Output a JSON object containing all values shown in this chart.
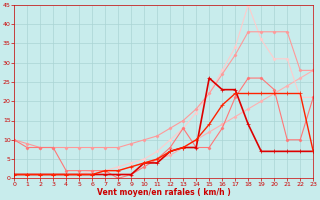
{
  "title": "",
  "xlabel": "Vent moyen/en rafales ( km/h )",
  "ylabel": "",
  "xlim": [
    0,
    23
  ],
  "ylim": [
    0,
    45
  ],
  "yticks": [
    0,
    5,
    10,
    15,
    20,
    25,
    30,
    35,
    40,
    45
  ],
  "xticks": [
    0,
    1,
    2,
    3,
    4,
    5,
    6,
    7,
    8,
    9,
    10,
    11,
    12,
    13,
    14,
    15,
    16,
    17,
    18,
    19,
    20,
    21,
    22,
    23
  ],
  "background_color": "#c8ecec",
  "grid_color": "#aad4d4",
  "series": [
    {
      "x": [
        0,
        1,
        2,
        3,
        4,
        5,
        6,
        7,
        8,
        9,
        10,
        11,
        12,
        13,
        14,
        15,
        16,
        17,
        18,
        19,
        20,
        21,
        22,
        23
      ],
      "y": [
        1,
        1,
        1,
        1,
        1,
        1,
        1,
        2,
        2,
        3,
        4,
        5,
        6,
        8,
        10,
        12,
        14,
        16,
        18,
        20,
        22,
        24,
        26,
        28
      ],
      "color": "#ffb0b0",
      "lw": 0.8,
      "marker": "D",
      "ms": 1.5
    },
    {
      "x": [
        0,
        1,
        2,
        3,
        4,
        5,
        6,
        7,
        8,
        9,
        10,
        11,
        12,
        13,
        14,
        15,
        16,
        17,
        18,
        19,
        20,
        21,
        22,
        23
      ],
      "y": [
        1,
        1,
        1,
        1,
        1,
        1,
        2,
        2,
        3,
        4,
        5,
        7,
        10,
        13,
        17,
        22,
        28,
        34,
        45,
        36,
        31,
        31,
        21,
        21
      ],
      "color": "#ffcccc",
      "lw": 0.8,
      "marker": "D",
      "ms": 1.5
    },
    {
      "x": [
        0,
        1,
        2,
        3,
        4,
        5,
        6,
        7,
        8,
        9,
        10,
        11,
        12,
        13,
        14,
        15,
        16,
        17,
        18,
        19,
        20,
        21,
        22,
        23
      ],
      "y": [
        10,
        9,
        8,
        8,
        8,
        8,
        8,
        8,
        8,
        9,
        10,
        11,
        13,
        15,
        18,
        22,
        27,
        32,
        38,
        38,
        38,
        38,
        28,
        28
      ],
      "color": "#ff9999",
      "lw": 0.8,
      "marker": "D",
      "ms": 1.5
    },
    {
      "x": [
        0,
        1,
        2,
        3,
        4,
        5,
        6,
        7,
        8,
        9,
        10,
        11,
        12,
        13,
        14,
        15,
        16,
        17,
        18,
        19,
        20,
        21,
        22,
        23
      ],
      "y": [
        10,
        8,
        8,
        8,
        2,
        2,
        2,
        2,
        0,
        1,
        3,
        5,
        8,
        13,
        8,
        8,
        13,
        21,
        26,
        26,
        23,
        10,
        10,
        21
      ],
      "color": "#ff7777",
      "lw": 0.8,
      "marker": "D",
      "ms": 1.5
    },
    {
      "x": [
        0,
        1,
        2,
        3,
        4,
        5,
        6,
        7,
        8,
        9,
        10,
        11,
        12,
        13,
        14,
        15,
        16,
        17,
        18,
        19,
        20,
        21,
        22,
        23
      ],
      "y": [
        1,
        1,
        1,
        1,
        1,
        1,
        1,
        1,
        1,
        1,
        4,
        4,
        7,
        8,
        8,
        26,
        23,
        23,
        14,
        7,
        7,
        7,
        7,
        7
      ],
      "color": "#dd0000",
      "lw": 1.2,
      "marker": "+",
      "ms": 3
    },
    {
      "x": [
        0,
        1,
        2,
        3,
        4,
        5,
        6,
        7,
        8,
        9,
        10,
        11,
        12,
        13,
        14,
        15,
        16,
        17,
        18,
        19,
        20,
        21,
        22,
        23
      ],
      "y": [
        1,
        1,
        1,
        1,
        1,
        1,
        1,
        2,
        2,
        3,
        4,
        5,
        7,
        8,
        10,
        14,
        19,
        22,
        22,
        22,
        22,
        22,
        22,
        7
      ],
      "color": "#ff2200",
      "lw": 1.0,
      "marker": "+",
      "ms": 3
    }
  ]
}
